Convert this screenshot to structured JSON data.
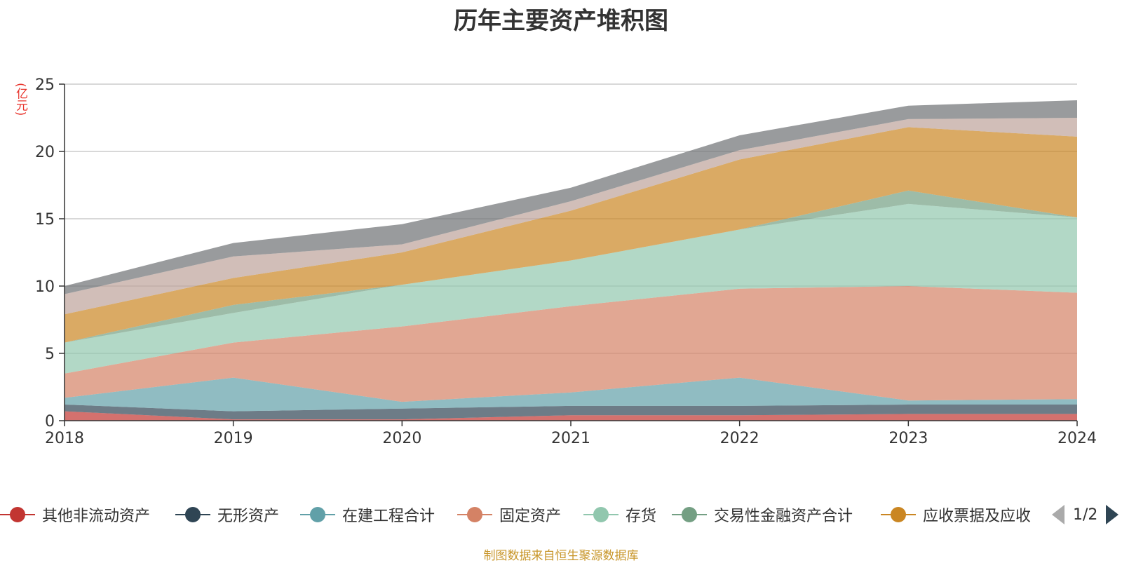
{
  "chart_data": {
    "type": "area",
    "stacked": true,
    "title": "历年主要资产堆积图",
    "unit": "(亿元)",
    "x": [
      "2018",
      "2019",
      "2020",
      "2021",
      "2022",
      "2023",
      "2024"
    ],
    "ylim": [
      0,
      25
    ],
    "yticks": [
      0,
      5,
      10,
      15,
      20,
      25
    ],
    "grid": true,
    "legend_position": "bottom",
    "series": [
      {
        "name": "其他非流动资产",
        "color": "#c23531",
        "values": [
          0.7,
          0.1,
          0.1,
          0.4,
          0.4,
          0.5,
          0.5
        ]
      },
      {
        "name": "无形资产",
        "color": "#2f4554",
        "values": [
          0.5,
          0.6,
          0.8,
          0.7,
          0.7,
          0.7,
          0.7
        ]
      },
      {
        "name": "在建工程合计",
        "color": "#61a0a8",
        "values": [
          0.5,
          2.5,
          0.5,
          1.0,
          2.1,
          0.3,
          0.4
        ]
      },
      {
        "name": "固定资产",
        "color": "#d48265",
        "values": [
          1.8,
          2.6,
          5.6,
          6.4,
          6.6,
          8.5,
          7.9
        ]
      },
      {
        "name": "存货",
        "color": "#91c7ae",
        "values": [
          2.3,
          2.2,
          3.1,
          3.4,
          4.4,
          6.1,
          5.6
        ]
      },
      {
        "name": "交易性金融资产合计",
        "color": "#749f83",
        "values": [
          0.0,
          0.6,
          0.0,
          0.0,
          0.0,
          1.0,
          0.0
        ]
      },
      {
        "name": "应收票据及应收",
        "color": "#ca8622",
        "values": [
          2.1,
          2.0,
          2.4,
          3.7,
          5.2,
          4.7,
          6.0
        ]
      },
      {
        "name": "",
        "color": "#bda29a",
        "values": [
          1.5,
          1.6,
          0.6,
          0.7,
          0.7,
          0.6,
          1.4
        ]
      },
      {
        "name": "",
        "color": "#6e7074",
        "values": [
          0.6,
          1.0,
          1.5,
          1.0,
          1.1,
          1.0,
          1.3
        ]
      }
    ]
  },
  "legend": {
    "page_indicator": "1/2"
  },
  "footer": {
    "source": "制图数据来自恒生聚源数据库"
  }
}
